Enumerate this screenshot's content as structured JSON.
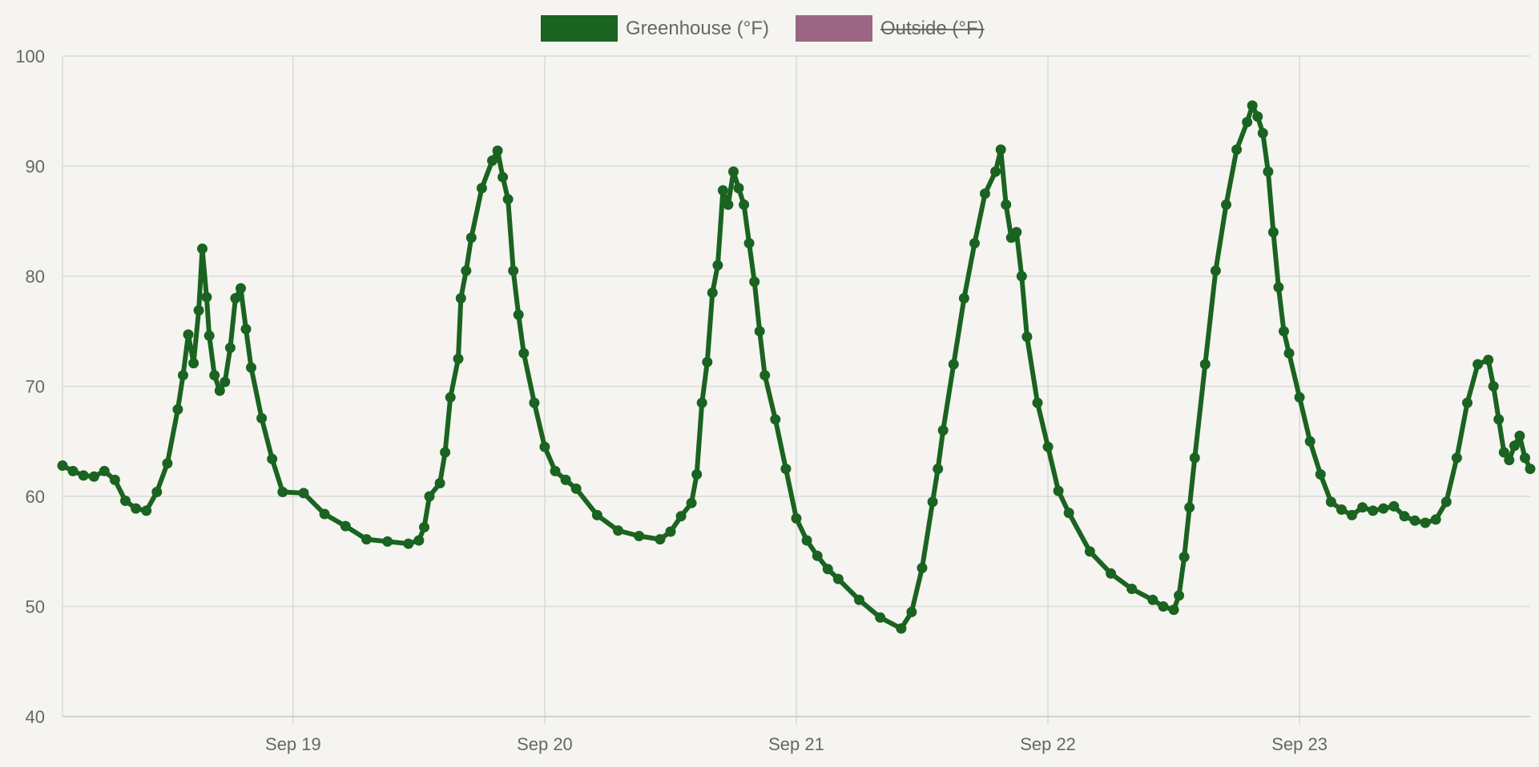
{
  "colors": {
    "background": "#f5f4f0",
    "grid": "#d9d9d6",
    "greenhouse": "#1a6320",
    "outside": "#9b6683",
    "text": "#666666"
  },
  "chart_data": {
    "type": "line",
    "title": "",
    "xlabel": "",
    "ylabel": "",
    "ylim": [
      40,
      100
    ],
    "y_ticks": [
      "40",
      "50",
      "60",
      "70",
      "80",
      "90",
      "100"
    ],
    "y_tick_values": [
      40,
      50,
      60,
      70,
      80,
      90,
      100
    ],
    "x_range": [
      "Sep 18 02:00",
      "Sep 23 22:00"
    ],
    "x_ticks": [
      "Sep 19",
      "Sep 20",
      "Sep 21",
      "Sep 22",
      "Sep 23"
    ],
    "x_tick_values": [
      "Sep 19 00:00",
      "Sep 20 00:00",
      "Sep 21 00:00",
      "Sep 22 00:00",
      "Sep 23 00:00"
    ],
    "grid": true,
    "legend_position": "top-center",
    "legend": [
      {
        "label": "Greenhouse (°F)",
        "hidden": false
      },
      {
        "label": "Outside (°F)",
        "hidden": true
      }
    ],
    "series": [
      {
        "name": "Greenhouse (°F)",
        "visible": true,
        "points": [
          [
            "Sep 18 02:00",
            62.8
          ],
          [
            "Sep 18 03:00",
            62.3
          ],
          [
            "Sep 18 04:00",
            61.9
          ],
          [
            "Sep 18 05:00",
            61.8
          ],
          [
            "Sep 18 06:00",
            62.3
          ],
          [
            "Sep 18 07:00",
            61.5
          ],
          [
            "Sep 18 08:00",
            59.6
          ],
          [
            "Sep 18 09:00",
            58.9
          ],
          [
            "Sep 18 10:00",
            58.7
          ],
          [
            "Sep 18 11:00",
            60.4
          ],
          [
            "Sep 18 12:00",
            63.0
          ],
          [
            "Sep 18 13:00",
            67.9
          ],
          [
            "Sep 18 13:30",
            71.0
          ],
          [
            "Sep 18 14:00",
            74.7
          ],
          [
            "Sep 18 14:30",
            72.1
          ],
          [
            "Sep 18 15:00",
            76.9
          ],
          [
            "Sep 18 15:20",
            82.5
          ],
          [
            "Sep 18 15:45",
            78.1
          ],
          [
            "Sep 18 16:00",
            74.6
          ],
          [
            "Sep 18 16:30",
            71.0
          ],
          [
            "Sep 18 17:00",
            69.6
          ],
          [
            "Sep 18 17:30",
            70.4
          ],
          [
            "Sep 18 18:00",
            73.5
          ],
          [
            "Sep 18 18:30",
            78.0
          ],
          [
            "Sep 18 19:00",
            78.9
          ],
          [
            "Sep 18 19:30",
            75.2
          ],
          [
            "Sep 18 20:00",
            71.7
          ],
          [
            "Sep 18 21:00",
            67.1
          ],
          [
            "Sep 18 22:00",
            63.4
          ],
          [
            "Sep 18 23:00",
            60.4
          ],
          [
            "Sep 19 01:00",
            60.3
          ],
          [
            "Sep 19 03:00",
            58.4
          ],
          [
            "Sep 19 05:00",
            57.3
          ],
          [
            "Sep 19 07:00",
            56.1
          ],
          [
            "Sep 19 09:00",
            55.9
          ],
          [
            "Sep 19 11:00",
            55.7
          ],
          [
            "Sep 19 12:00",
            56.0
          ],
          [
            "Sep 19 12:30",
            57.2
          ],
          [
            "Sep 19 13:00",
            60.0
          ],
          [
            "Sep 19 14:00",
            61.2
          ],
          [
            "Sep 19 14:30",
            64.0
          ],
          [
            "Sep 19 15:00",
            69.0
          ],
          [
            "Sep 19 15:45",
            72.5
          ],
          [
            "Sep 19 16:00",
            78.0
          ],
          [
            "Sep 19 16:30",
            80.5
          ],
          [
            "Sep 19 17:00",
            83.5
          ],
          [
            "Sep 19 18:00",
            88.0
          ],
          [
            "Sep 19 19:00",
            90.5
          ],
          [
            "Sep 19 19:30",
            91.4
          ],
          [
            "Sep 19 20:00",
            89.0
          ],
          [
            "Sep 19 20:30",
            87.0
          ],
          [
            "Sep 19 21:00",
            80.5
          ],
          [
            "Sep 19 21:30",
            76.5
          ],
          [
            "Sep 19 22:00",
            73.0
          ],
          [
            "Sep 19 23:00",
            68.5
          ],
          [
            "Sep 20 00:00",
            64.5
          ],
          [
            "Sep 20 01:00",
            62.3
          ],
          [
            "Sep 20 02:00",
            61.5
          ],
          [
            "Sep 20 03:00",
            60.7
          ],
          [
            "Sep 20 05:00",
            58.3
          ],
          [
            "Sep 20 07:00",
            56.9
          ],
          [
            "Sep 20 09:00",
            56.4
          ],
          [
            "Sep 20 11:00",
            56.1
          ],
          [
            "Sep 20 12:00",
            56.8
          ],
          [
            "Sep 20 13:00",
            58.2
          ],
          [
            "Sep 20 14:00",
            59.4
          ],
          [
            "Sep 20 14:30",
            62.0
          ],
          [
            "Sep 20 15:00",
            68.5
          ],
          [
            "Sep 20 15:30",
            72.2
          ],
          [
            "Sep 20 16:00",
            78.5
          ],
          [
            "Sep 20 16:30",
            81.0
          ],
          [
            "Sep 20 17:00",
            87.8
          ],
          [
            "Sep 20 17:30",
            86.5
          ],
          [
            "Sep 20 18:00",
            89.5
          ],
          [
            "Sep 20 18:30",
            88.0
          ],
          [
            "Sep 20 19:00",
            86.5
          ],
          [
            "Sep 20 19:30",
            83.0
          ],
          [
            "Sep 20 20:00",
            79.5
          ],
          [
            "Sep 20 20:30",
            75.0
          ],
          [
            "Sep 20 21:00",
            71.0
          ],
          [
            "Sep 20 22:00",
            67.0
          ],
          [
            "Sep 20 23:00",
            62.5
          ],
          [
            "Sep 21 00:00",
            58.0
          ],
          [
            "Sep 21 01:00",
            56.0
          ],
          [
            "Sep 21 02:00",
            54.6
          ],
          [
            "Sep 21 03:00",
            53.4
          ],
          [
            "Sep 21 04:00",
            52.5
          ],
          [
            "Sep 21 06:00",
            50.6
          ],
          [
            "Sep 21 08:00",
            49.0
          ],
          [
            "Sep 21 10:00",
            48.0
          ],
          [
            "Sep 21 11:00",
            49.5
          ],
          [
            "Sep 21 12:00",
            53.5
          ],
          [
            "Sep 21 13:00",
            59.5
          ],
          [
            "Sep 21 13:30",
            62.5
          ],
          [
            "Sep 21 14:00",
            66.0
          ],
          [
            "Sep 21 15:00",
            72.0
          ],
          [
            "Sep 21 16:00",
            78.0
          ],
          [
            "Sep 21 17:00",
            83.0
          ],
          [
            "Sep 21 18:00",
            87.5
          ],
          [
            "Sep 21 19:00",
            89.5
          ],
          [
            "Sep 21 19:30",
            91.5
          ],
          [
            "Sep 21 20:00",
            86.5
          ],
          [
            "Sep 21 20:30",
            83.5
          ],
          [
            "Sep 21 21:00",
            84.0
          ],
          [
            "Sep 21 21:30",
            80.0
          ],
          [
            "Sep 21 22:00",
            74.5
          ],
          [
            "Sep 21 23:00",
            68.5
          ],
          [
            "Sep 22 00:00",
            64.5
          ],
          [
            "Sep 22 01:00",
            60.5
          ],
          [
            "Sep 22 02:00",
            58.5
          ],
          [
            "Sep 22 04:00",
            55.0
          ],
          [
            "Sep 22 06:00",
            53.0
          ],
          [
            "Sep 22 08:00",
            51.6
          ],
          [
            "Sep 22 10:00",
            50.6
          ],
          [
            "Sep 22 11:00",
            50.0
          ],
          [
            "Sep 22 12:00",
            49.7
          ],
          [
            "Sep 22 12:30",
            51.0
          ],
          [
            "Sep 22 13:00",
            54.5
          ],
          [
            "Sep 22 13:30",
            59.0
          ],
          [
            "Sep 22 14:00",
            63.5
          ],
          [
            "Sep 22 15:00",
            72.0
          ],
          [
            "Sep 22 16:00",
            80.5
          ],
          [
            "Sep 22 17:00",
            86.5
          ],
          [
            "Sep 22 18:00",
            91.5
          ],
          [
            "Sep 22 19:00",
            94.0
          ],
          [
            "Sep 22 19:30",
            95.5
          ],
          [
            "Sep 22 20:00",
            94.5
          ],
          [
            "Sep 22 20:30",
            93.0
          ],
          [
            "Sep 22 21:00",
            89.5
          ],
          [
            "Sep 22 21:30",
            84.0
          ],
          [
            "Sep 22 22:00",
            79.0
          ],
          [
            "Sep 22 22:30",
            75.0
          ],
          [
            "Sep 22 23:00",
            73.0
          ],
          [
            "Sep 23 00:00",
            69.0
          ],
          [
            "Sep 23 01:00",
            65.0
          ],
          [
            "Sep 23 02:00",
            62.0
          ],
          [
            "Sep 23 03:00",
            59.5
          ],
          [
            "Sep 23 04:00",
            58.8
          ],
          [
            "Sep 23 05:00",
            58.3
          ],
          [
            "Sep 23 06:00",
            59.0
          ],
          [
            "Sep 23 07:00",
            58.7
          ],
          [
            "Sep 23 08:00",
            58.9
          ],
          [
            "Sep 23 09:00",
            59.1
          ],
          [
            "Sep 23 10:00",
            58.2
          ],
          [
            "Sep 23 11:00",
            57.8
          ],
          [
            "Sep 23 12:00",
            57.6
          ],
          [
            "Sep 23 13:00",
            57.9
          ],
          [
            "Sep 23 14:00",
            59.5
          ],
          [
            "Sep 23 15:00",
            63.5
          ],
          [
            "Sep 23 16:00",
            68.5
          ],
          [
            "Sep 23 17:00",
            72.0
          ],
          [
            "Sep 23 18:00",
            72.4
          ],
          [
            "Sep 23 18:30",
            70.0
          ],
          [
            "Sep 23 19:00",
            67.0
          ],
          [
            "Sep 23 19:30",
            64.0
          ],
          [
            "Sep 23 20:00",
            63.3
          ],
          [
            "Sep 23 20:30",
            64.6
          ],
          [
            "Sep 23 21:00",
            65.5
          ],
          [
            "Sep 23 21:30",
            63.5
          ],
          [
            "Sep 23 22:00",
            62.5
          ]
        ]
      },
      {
        "name": "Outside (°F)",
        "visible": false,
        "points": []
      }
    ]
  }
}
